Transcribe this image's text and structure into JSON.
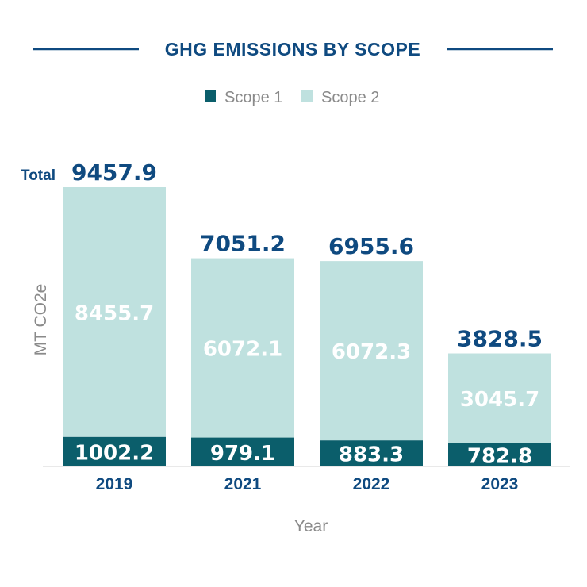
{
  "chart_data": {
    "type": "bar",
    "stacked": true,
    "title": "GHG EMISSIONS BY SCOPE",
    "xlabel": "Year",
    "ylabel": "MT CO2e",
    "categories": [
      "2019",
      "2021",
      "2022",
      "2023"
    ],
    "series": [
      {
        "name": "Scope 1",
        "values": [
          1002.2,
          979.1,
          883.3,
          782.8
        ],
        "color": "#0b5e6b",
        "label_color": "#ffffff"
      },
      {
        "name": "Scope 2",
        "values": [
          8455.7,
          6072.1,
          6072.3,
          3045.7
        ],
        "color": "#bfe1df",
        "label_color": "#ffffff"
      }
    ],
    "totals": [
      9457.9,
      7051.2,
      6955.6,
      3828.5
    ],
    "total_label": "Total",
    "ylim": [
      0,
      10000
    ],
    "grid": false,
    "legend_position": "top-center",
    "colors": {
      "title": "#0f4a80",
      "axis": "#e2e2e2",
      "muted_text": "#8a8a8a"
    }
  }
}
